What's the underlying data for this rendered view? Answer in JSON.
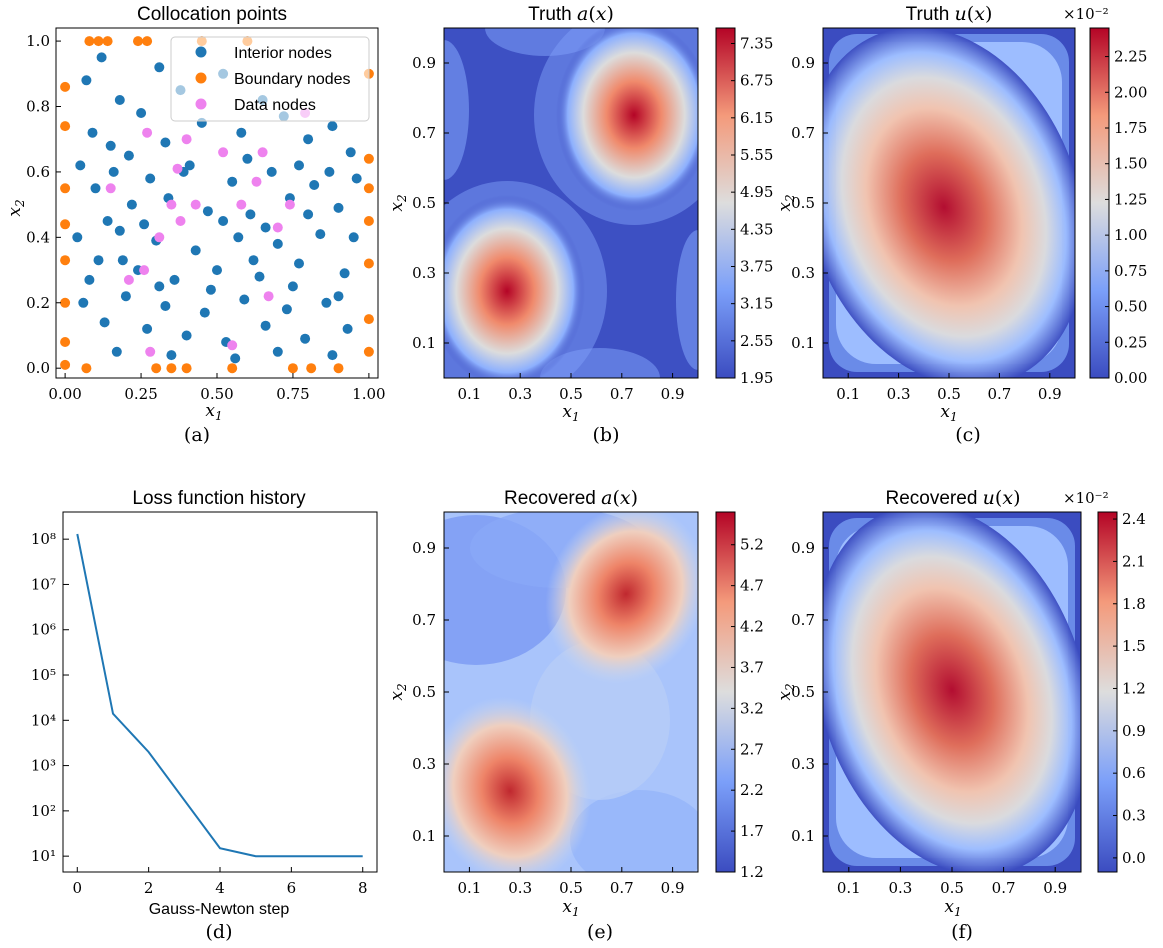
{
  "figure": {
    "captions": [
      "(a)",
      "(b)",
      "(c)",
      "(d)",
      "(e)",
      "(f)"
    ]
  },
  "colors": {
    "interior": "#1f77b4",
    "boundary": "#ff7f0e",
    "data": "#ee82ee",
    "loss_line": "#1f77b4",
    "coolwarm_low": "#3b4cc0",
    "coolwarm_mid": "#dddddd",
    "coolwarm_high": "#b40426"
  },
  "chart_data": [
    {
      "id": "a",
      "type": "scatter",
      "title": "Collocation points",
      "xlabel": "x1",
      "ylabel": "x2",
      "xlim": [
        -0.03,
        1.03
      ],
      "ylim": [
        -0.03,
        1.04
      ],
      "xticks": [
        "0.00",
        "0.25",
        "0.50",
        "0.75",
        "1.00"
      ],
      "yticks": [
        "0.0",
        "0.2",
        "0.4",
        "0.6",
        "0.8",
        "1.0"
      ],
      "legend": [
        "Interior nodes",
        "Boundary nodes",
        "Data nodes"
      ],
      "legend_position": "top-right",
      "series": [
        {
          "name": "Interior nodes",
          "points": [
            [
              0.07,
              0.88
            ],
            [
              0.12,
              0.95
            ],
            [
              0.18,
              0.82
            ],
            [
              0.25,
              0.78
            ],
            [
              0.31,
              0.92
            ],
            [
              0.38,
              0.85
            ],
            [
              0.45,
              0.75
            ],
            [
              0.52,
              0.9
            ],
            [
              0.58,
              0.72
            ],
            [
              0.65,
              0.82
            ],
            [
              0.72,
              0.77
            ],
            [
              0.8,
              0.7
            ],
            [
              0.88,
              0.74
            ],
            [
              0.94,
              0.66
            ],
            [
              0.05,
              0.62
            ],
            [
              0.1,
              0.55
            ],
            [
              0.16,
              0.6
            ],
            [
              0.22,
              0.5
            ],
            [
              0.28,
              0.58
            ],
            [
              0.34,
              0.52
            ],
            [
              0.41,
              0.62
            ],
            [
              0.47,
              0.48
            ],
            [
              0.55,
              0.57
            ],
            [
              0.61,
              0.47
            ],
            [
              0.68,
              0.6
            ],
            [
              0.74,
              0.52
            ],
            [
              0.82,
              0.56
            ],
            [
              0.9,
              0.49
            ],
            [
              0.96,
              0.58
            ],
            [
              0.04,
              0.4
            ],
            [
              0.11,
              0.33
            ],
            [
              0.18,
              0.42
            ],
            [
              0.24,
              0.3
            ],
            [
              0.3,
              0.39
            ],
            [
              0.36,
              0.27
            ],
            [
              0.43,
              0.36
            ],
            [
              0.5,
              0.3
            ],
            [
              0.57,
              0.4
            ],
            [
              0.64,
              0.28
            ],
            [
              0.7,
              0.38
            ],
            [
              0.77,
              0.32
            ],
            [
              0.84,
              0.41
            ],
            [
              0.92,
              0.29
            ],
            [
              0.06,
              0.2
            ],
            [
              0.13,
              0.14
            ],
            [
              0.2,
              0.22
            ],
            [
              0.27,
              0.12
            ],
            [
              0.33,
              0.19
            ],
            [
              0.4,
              0.1
            ],
            [
              0.46,
              0.17
            ],
            [
              0.53,
              0.08
            ],
            [
              0.59,
              0.21
            ],
            [
              0.66,
              0.13
            ],
            [
              0.73,
              0.18
            ],
            [
              0.79,
              0.09
            ],
            [
              0.86,
              0.2
            ],
            [
              0.93,
              0.12
            ],
            [
              0.09,
              0.72
            ],
            [
              0.15,
              0.68
            ],
            [
              0.21,
              0.65
            ],
            [
              0.33,
              0.69
            ],
            [
              0.39,
              0.6
            ],
            [
              0.6,
              0.64
            ],
            [
              0.77,
              0.62
            ],
            [
              0.87,
              0.6
            ],
            [
              0.14,
              0.45
            ],
            [
              0.26,
              0.44
            ],
            [
              0.52,
              0.45
            ],
            [
              0.66,
              0.43
            ],
            [
              0.8,
              0.47
            ],
            [
              0.95,
              0.4
            ],
            [
              0.08,
              0.27
            ],
            [
              0.19,
              0.33
            ],
            [
              0.31,
              0.25
            ],
            [
              0.48,
              0.24
            ],
            [
              0.62,
              0.33
            ],
            [
              0.75,
              0.25
            ],
            [
              0.9,
              0.22
            ],
            [
              0.17,
              0.05
            ],
            [
              0.35,
              0.04
            ],
            [
              0.56,
              0.03
            ],
            [
              0.7,
              0.05
            ],
            [
              0.88,
              0.04
            ]
          ]
        },
        {
          "name": "Boundary nodes",
          "points": [
            [
              0.0,
              0.86
            ],
            [
              0.0,
              0.74
            ],
            [
              0.0,
              0.55
            ],
            [
              0.0,
              0.44
            ],
            [
              0.0,
              0.33
            ],
            [
              0.0,
              0.2
            ],
            [
              0.0,
              0.08
            ],
            [
              0.0,
              0.01
            ],
            [
              1.0,
              0.9
            ],
            [
              1.0,
              0.64
            ],
            [
              1.0,
              0.55
            ],
            [
              1.0,
              0.45
            ],
            [
              1.0,
              0.32
            ],
            [
              1.0,
              0.15
            ],
            [
              1.0,
              0.05
            ],
            [
              0.08,
              1.0
            ],
            [
              0.11,
              1.0
            ],
            [
              0.14,
              1.0
            ],
            [
              0.24,
              1.0
            ],
            [
              0.27,
              1.0
            ],
            [
              0.45,
              1.0
            ],
            [
              0.6,
              1.0
            ],
            [
              0.07,
              0.0
            ],
            [
              0.3,
              0.0
            ],
            [
              0.35,
              0.0
            ],
            [
              0.4,
              0.0
            ],
            [
              0.55,
              0.0
            ],
            [
              0.75,
              0.0
            ],
            [
              0.81,
              0.0
            ],
            [
              0.9,
              0.0
            ]
          ]
        },
        {
          "name": "Data nodes",
          "points": [
            [
              0.15,
              0.55
            ],
            [
              0.27,
              0.72
            ],
            [
              0.26,
              0.3
            ],
            [
              0.31,
              0.4
            ],
            [
              0.35,
              0.5
            ],
            [
              0.38,
              0.45
            ],
            [
              0.43,
              0.5
            ],
            [
              0.37,
              0.61
            ],
            [
              0.28,
              0.05
            ],
            [
              0.55,
              0.07
            ],
            [
              0.52,
              0.66
            ],
            [
              0.58,
              0.5
            ],
            [
              0.63,
              0.57
            ],
            [
              0.65,
              0.66
            ],
            [
              0.67,
              0.22
            ],
            [
              0.7,
              0.43
            ],
            [
              0.74,
              0.5
            ],
            [
              0.79,
              0.78
            ],
            [
              0.4,
              0.7
            ],
            [
              0.21,
              0.27
            ]
          ]
        }
      ]
    },
    {
      "id": "b",
      "type": "heatmap",
      "title": "Truth a(x)",
      "xlabel": "x1",
      "ylabel": "x2",
      "xticks": [
        "0.1",
        "0.3",
        "0.5",
        "0.7",
        "0.9"
      ],
      "yticks": [
        "0.1",
        "0.3",
        "0.5",
        "0.7",
        "0.9"
      ],
      "colorbar_ticks": [
        "1.95",
        "2.55",
        "3.15",
        "3.75",
        "4.35",
        "4.95",
        "5.55",
        "6.15",
        "6.75",
        "7.35"
      ],
      "range": [
        1.95,
        7.6
      ],
      "peaks": [
        [
          0.25,
          0.25
        ],
        [
          0.75,
          0.75
        ]
      ],
      "colormap": "coolwarm"
    },
    {
      "id": "c",
      "type": "heatmap",
      "title": "Truth u(x)",
      "xlabel": "x1",
      "ylabel": "x2",
      "scale_label": "×10⁻²",
      "xticks": [
        "0.1",
        "0.3",
        "0.5",
        "0.7",
        "0.9"
      ],
      "yticks": [
        "0.1",
        "0.3",
        "0.5",
        "0.7",
        "0.9"
      ],
      "colorbar_ticks": [
        "0.00",
        "0.25",
        "0.50",
        "0.75",
        "1.00",
        "1.25",
        "1.50",
        "1.75",
        "2.00",
        "2.25"
      ],
      "range": [
        0.0,
        2.45
      ],
      "peak": [
        0.48,
        0.52
      ],
      "colormap": "coolwarm"
    },
    {
      "id": "d",
      "type": "line",
      "title": "Loss function history",
      "xlabel": "Gauss-Newton step",
      "ylabel": "",
      "yscale": "log",
      "xticks": [
        "0",
        "2",
        "4",
        "6",
        "8"
      ],
      "yticks": [
        "10¹",
        "10²",
        "10³",
        "10⁴",
        "10⁵",
        "10⁶",
        "10⁷",
        "10⁸"
      ],
      "x": [
        0,
        1,
        2,
        4,
        5,
        8
      ],
      "y": [
        130000000,
        14000,
        2000,
        15,
        10,
        10
      ]
    },
    {
      "id": "e",
      "type": "heatmap",
      "title": "Recovered a(x)",
      "xlabel": "x1",
      "ylabel": "x2",
      "xticks": [
        "0.1",
        "0.3",
        "0.5",
        "0.7",
        "0.9"
      ],
      "yticks": [
        "0.1",
        "0.3",
        "0.5",
        "0.7",
        "0.9"
      ],
      "colorbar_ticks": [
        "1.2",
        "1.7",
        "2.2",
        "2.7",
        "3.2",
        "3.7",
        "4.2",
        "4.7",
        "5.2"
      ],
      "range": [
        1.2,
        5.6
      ],
      "peaks": [
        [
          0.27,
          0.22
        ],
        [
          0.72,
          0.78
        ]
      ],
      "colormap": "coolwarm"
    },
    {
      "id": "f",
      "type": "heatmap",
      "title": "Recovered u(x)",
      "xlabel": "x1",
      "ylabel": "x2",
      "scale_label": "×10⁻²",
      "xticks": [
        "0.1",
        "0.3",
        "0.5",
        "0.7",
        "0.9"
      ],
      "yticks": [
        "0.1",
        "0.3",
        "0.5",
        "0.7",
        "0.9"
      ],
      "colorbar_ticks": [
        "0.0",
        "0.3",
        "0.6",
        "0.9",
        "1.2",
        "1.5",
        "1.8",
        "2.1",
        "2.4"
      ],
      "range": [
        -0.1,
        2.45
      ],
      "peak": [
        0.5,
        0.5
      ],
      "colormap": "coolwarm"
    }
  ]
}
